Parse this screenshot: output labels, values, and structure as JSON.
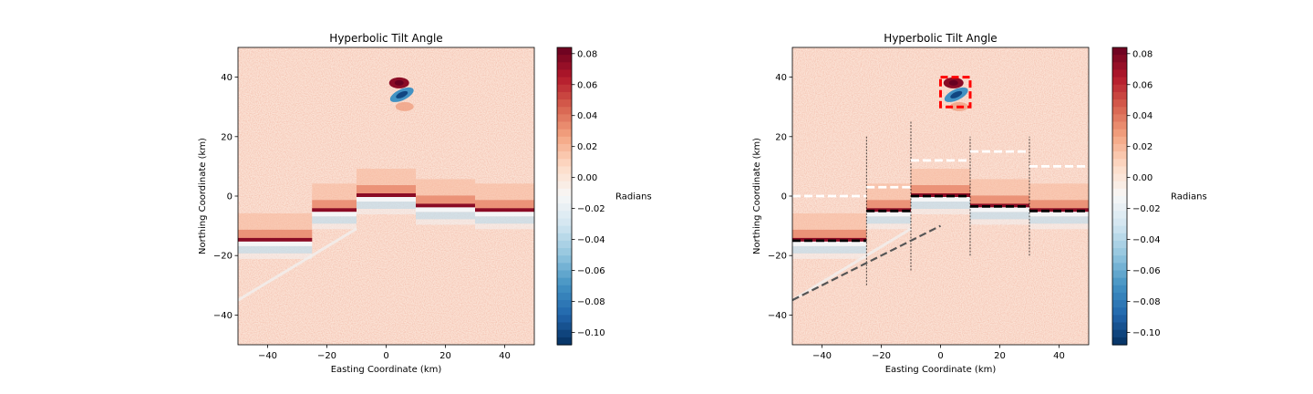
{
  "chart_data": [
    {
      "type": "heatmap",
      "title": "Hyperbolic Tilt Angle",
      "xlabel": "Easting Coordinate (km)",
      "ylabel": "Northing Coordinate (km)",
      "xlim": [
        -50,
        50
      ],
      "ylim": [
        -50,
        50
      ],
      "xticks": [
        -40,
        -20,
        0,
        20,
        40
      ],
      "yticks": [
        -40,
        -20,
        0,
        20,
        40
      ],
      "colorbar": {
        "label": "Radians",
        "range": [
          -0.108,
          0.084
        ],
        "ticks": [
          0.08,
          0.06,
          0.04,
          0.02,
          0.0,
          -0.02,
          -0.04,
          -0.06,
          -0.08,
          -0.1
        ],
        "tick_labels": [
          "0.08",
          "0.06",
          "0.04",
          "0.02",
          "0.00",
          "−0.02",
          "−0.04",
          "−0.06",
          "−0.08",
          "−0.10"
        ],
        "colormap": "RdBu_r"
      },
      "anomaly_blocks": [
        {
          "x_range": [
            -50,
            -25
          ],
          "depth": -15
        },
        {
          "x_range": [
            -25,
            -10
          ],
          "depth": -5
        },
        {
          "x_range": [
            -10,
            10
          ],
          "depth": 0
        },
        {
          "x_range": [
            10,
            30
          ],
          "depth": -3.5
        },
        {
          "x_range": [
            30,
            50
          ],
          "depth": -5
        }
      ],
      "source_anomaly": {
        "x": 5,
        "y": 35
      },
      "dike_trace": {
        "start": [
          -50,
          -35
        ],
        "end": [
          -10,
          -11
        ]
      },
      "overlays": false
    },
    {
      "type": "heatmap",
      "title": "Hyperbolic Tilt Angle",
      "xlabel": "Easting Coordinate (km)",
      "ylabel": "Northing Coordinate (km)",
      "xlim": [
        -50,
        50
      ],
      "ylim": [
        -50,
        50
      ],
      "xticks": [
        -40,
        -20,
        0,
        20,
        40
      ],
      "yticks": [
        -40,
        -20,
        0,
        20,
        40
      ],
      "colorbar": {
        "label": "Radians",
        "range": [
          -0.108,
          0.084
        ],
        "ticks": [
          0.08,
          0.06,
          0.04,
          0.02,
          0.0,
          -0.02,
          -0.04,
          -0.06,
          -0.08,
          -0.1
        ],
        "tick_labels": [
          "0.08",
          "0.06",
          "0.04",
          "0.02",
          "0.00",
          "−0.02",
          "−0.04",
          "−0.06",
          "−0.08",
          "−0.10"
        ],
        "colormap": "RdBu_r"
      },
      "anomaly_blocks": [
        {
          "x_range": [
            -50,
            -25
          ],
          "depth": -15
        },
        {
          "x_range": [
            -25,
            -10
          ],
          "depth": -5
        },
        {
          "x_range": [
            -10,
            10
          ],
          "depth": 0
        },
        {
          "x_range": [
            10,
            30
          ],
          "depth": -3.5
        },
        {
          "x_range": [
            30,
            50
          ],
          "depth": -5
        }
      ],
      "source_anomaly": {
        "x": 5,
        "y": 35
      },
      "dike_trace": {
        "start": [
          -50,
          -35
        ],
        "end": [
          -10,
          -11
        ]
      },
      "overlays": true,
      "black_dashed_segments": [
        {
          "x": [
            -50,
            -25
          ],
          "y": -15
        },
        {
          "x": [
            -25,
            -10
          ],
          "y": -5
        },
        {
          "x": [
            -10,
            10
          ],
          "y": 0
        },
        {
          "x": [
            10,
            30
          ],
          "y": -3.5
        },
        {
          "x": [
            30,
            50
          ],
          "y": -5
        }
      ],
      "white_dashed_segments": [
        {
          "x": [
            -50,
            -25
          ],
          "y": 0
        },
        {
          "x": [
            -25,
            -10
          ],
          "y": 3
        },
        {
          "x": [
            -10,
            10
          ],
          "y": 12
        },
        {
          "x": [
            10,
            30
          ],
          "y": 15
        },
        {
          "x": [
            30,
            50
          ],
          "y": 10
        }
      ],
      "vertical_dotted_lines": [
        {
          "x": -25,
          "y": [
            -30,
            20
          ]
        },
        {
          "x": -10,
          "y": [
            -25,
            25
          ]
        },
        {
          "x": 10,
          "y": [
            -20,
            20
          ]
        },
        {
          "x": 30,
          "y": [
            -20,
            20
          ]
        }
      ],
      "gray_dashed_line": {
        "start": [
          -50,
          -35
        ],
        "end": [
          0,
          -10
        ]
      },
      "red_dashed_box": {
        "x": [
          0,
          10
        ],
        "y": [
          30,
          40
        ]
      }
    }
  ]
}
